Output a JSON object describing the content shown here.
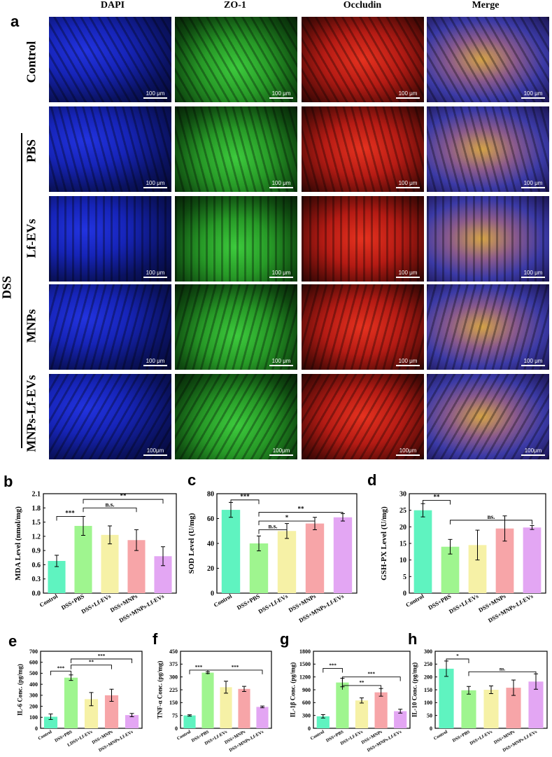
{
  "panels": {
    "a": "a",
    "b": "b",
    "c": "c",
    "d": "d",
    "e": "e",
    "f": "f",
    "g": "g",
    "h": "h"
  },
  "micrograph": {
    "columns": [
      "DAPI",
      "ZO-1",
      "Occludin",
      "Merge"
    ],
    "rows": [
      "Control",
      "PBS",
      "Lf-EVs",
      "MNPs",
      "MNPs-Lf-EVs"
    ],
    "group_label": "DSS",
    "scalebars": [
      "100 μm",
      "100 μm",
      "100 μm",
      "100 μm",
      "100 μm",
      "100 μm",
      "100 μm",
      "100 μm",
      "100 μm",
      "100 μm",
      "100 μm",
      "100 μm",
      "100 μm",
      "100 μm",
      "100 μm",
      "100 μm",
      "100μm",
      "100μm",
      "100μm",
      "100μm"
    ],
    "colors": {
      "DAPI": "#1a2bd6",
      "ZO-1": "#2fb52f",
      "Occludin": "#d81f1f",
      "Merge": "#c8a040"
    }
  },
  "chart_data": [
    {
      "id": "b",
      "type": "bar",
      "ylabel": "MDA Level (nmol/mg)",
      "categories": [
        "Control",
        "DSS+PBS",
        "DSS+Lf-EVs",
        "DSS+MNPs",
        "DSS+MNPs-Lf-EVs"
      ],
      "values": [
        0.68,
        1.42,
        1.23,
        1.12,
        0.78
      ],
      "errors": [
        0.12,
        0.2,
        0.19,
        0.22,
        0.2
      ],
      "ylim": [
        0.0,
        2.1
      ],
      "yticks": [
        "0.0",
        "0.3",
        "0.6",
        "0.9",
        "1.2",
        "1.5",
        "1.8",
        "2.1"
      ],
      "colors": [
        "#5ff3c0",
        "#9ff58f",
        "#f6f1a6",
        "#f7a5a8",
        "#e3a6f3"
      ],
      "brackets": [
        {
          "from": 0,
          "to": 1,
          "level": 1.62,
          "label": "***"
        },
        {
          "from": 1,
          "to": 3,
          "level": 1.8,
          "label": "n.s."
        },
        {
          "from": 1,
          "to": 4,
          "level": 1.98,
          "label": "**"
        }
      ]
    },
    {
      "id": "c",
      "type": "bar",
      "ylabel": "SOD Level (U/mg)",
      "categories": [
        "Control",
        "DSS+PBS",
        "DSS+Lf-EVs",
        "DSS+MNPs",
        "DSS+MNPs-Lf-EVs"
      ],
      "values": [
        67,
        40,
        50,
        56,
        61
      ],
      "errors": [
        6,
        6,
        6,
        5,
        3
      ],
      "ylim": [
        0,
        80
      ],
      "yticks": [
        "0",
        "20",
        "40",
        "60",
        "80"
      ],
      "colors": [
        "#5ff3c0",
        "#9ff58f",
        "#f6f1a6",
        "#f7a5a8",
        "#e3a6f3"
      ],
      "brackets": [
        {
          "from": 0,
          "to": 1,
          "level": 75,
          "label": "***"
        },
        {
          "from": 1,
          "to": 2,
          "level": 51,
          "label": "n.s."
        },
        {
          "from": 1,
          "to": 3,
          "level": 58,
          "label": "*"
        },
        {
          "from": 1,
          "to": 4,
          "level": 65,
          "label": "**"
        }
      ]
    },
    {
      "id": "d",
      "type": "bar",
      "ylabel": "GSH-PX Level (U/mg)",
      "categories": [
        "Control",
        "DSS+PBS",
        "DSS+Lf-EVs",
        "DSS+MNPs",
        "DSS+MNPs-Lf-EVs"
      ],
      "values": [
        25,
        14,
        14.5,
        19.5,
        19.8
      ],
      "errors": [
        2,
        2.2,
        4.5,
        3.8,
        0.6
      ],
      "ylim": [
        0,
        30
      ],
      "yticks": [
        "0",
        "5",
        "10",
        "15",
        "20",
        "25",
        "30"
      ],
      "colors": [
        "#5ff3c0",
        "#9ff58f",
        "#f6f1a6",
        "#f7a5a8",
        "#e3a6f3"
      ],
      "brackets": [
        {
          "from": 0,
          "to": 1,
          "level": 28,
          "label": "**"
        },
        {
          "from": 1,
          "to": 4,
          "level": 22,
          "label": "ns."
        }
      ]
    },
    {
      "id": "e",
      "type": "bar",
      "ylabel": "IL-6 Conc. (pg/mg)",
      "categories": [
        "Control",
        "DSS+PBS",
        "LDSS+Lf-EVs",
        "DSS+MNPs",
        "DSS+MNPs-Lf-EVs"
      ],
      "values": [
        105,
        460,
        265,
        300,
        120
      ],
      "errors": [
        25,
        25,
        60,
        55,
        15
      ],
      "ylim": [
        0,
        700
      ],
      "yticks": [
        "0",
        "100",
        "200",
        "300",
        "400",
        "500",
        "600",
        "700"
      ],
      "colors": [
        "#5ff3c0",
        "#9ff58f",
        "#f6f1a6",
        "#f7a5a8",
        "#e3a6f3"
      ],
      "brackets": [
        {
          "from": 0,
          "to": 1,
          "level": 520,
          "label": "***"
        },
        {
          "from": 1,
          "to": 3,
          "level": 575,
          "label": "**"
        },
        {
          "from": 1,
          "to": 4,
          "level": 630,
          "label": "***"
        }
      ]
    },
    {
      "id": "f",
      "type": "bar",
      "ylabel": "TNF-α Conc. (pg/mg)",
      "categories": [
        "Control",
        "DSS+PBS",
        "DSS+Lf-EVs",
        "DSS+MNPs",
        "DSS+MNPs-Lf-EVs"
      ],
      "values": [
        75,
        325,
        240,
        230,
        125
      ],
      "errors": [
        4,
        5,
        35,
        15,
        5
      ],
      "ylim": [
        0,
        450
      ],
      "yticks": [
        "0",
        "75",
        "150",
        "225",
        "300",
        "375",
        "450"
      ],
      "colors": [
        "#5ff3c0",
        "#9ff58f",
        "#f6f1a6",
        "#f7a5a8",
        "#e3a6f3"
      ],
      "brackets": [
        {
          "from": 0,
          "to": 1,
          "level": 340,
          "label": "***"
        },
        {
          "from": 1,
          "to": 4,
          "level": 340,
          "label": "***"
        }
      ]
    },
    {
      "id": "g",
      "type": "bar",
      "ylabel": "IL-1β Conc. (pg/mg)",
      "categories": [
        "Control",
        "DSS+PBS",
        "DSS+Lf-EVs",
        "DSS+MNPs",
        "DSS+MNPs-Lf-EVs"
      ],
      "values": [
        280,
        1070,
        650,
        840,
        400
      ],
      "errors": [
        40,
        100,
        60,
        90,
        45
      ],
      "ylim": [
        0,
        1800
      ],
      "yticks": [
        "0",
        "300",
        "600",
        "900",
        "1200",
        "1500",
        "1800"
      ],
      "colors": [
        "#5ff3c0",
        "#9ff58f",
        "#f6f1a6",
        "#f7a5a8",
        "#e3a6f3"
      ],
      "brackets": [
        {
          "from": 0,
          "to": 1,
          "level": 1400,
          "label": "***"
        },
        {
          "from": 1,
          "to": 3,
          "level": 1000,
          "label": "**"
        },
        {
          "from": 1,
          "to": 4,
          "level": 1200,
          "label": "***"
        }
      ]
    },
    {
      "id": "h",
      "type": "bar",
      "ylabel": "IL-10 Conc. (pg/mg)",
      "categories": [
        "Control",
        "DSS+PBS",
        "DSS+Lf-EVs",
        "DSS+MNPs",
        "DSS+MNPs-Lf-EVs"
      ],
      "values": [
        232,
        148,
        150,
        158,
        182
      ],
      "errors": [
        30,
        15,
        15,
        30,
        30
      ],
      "ylim": [
        0,
        300
      ],
      "yticks": [
        "0",
        "50",
        "100",
        "150",
        "200",
        "250",
        "300"
      ],
      "colors": [
        "#5ff3c0",
        "#9ff58f",
        "#f6f1a6",
        "#f7a5a8",
        "#e3a6f3"
      ],
      "brackets": [
        {
          "from": 0,
          "to": 1,
          "level": 270,
          "label": "*"
        },
        {
          "from": 1,
          "to": 4,
          "level": 220,
          "label": "ns."
        }
      ]
    }
  ]
}
